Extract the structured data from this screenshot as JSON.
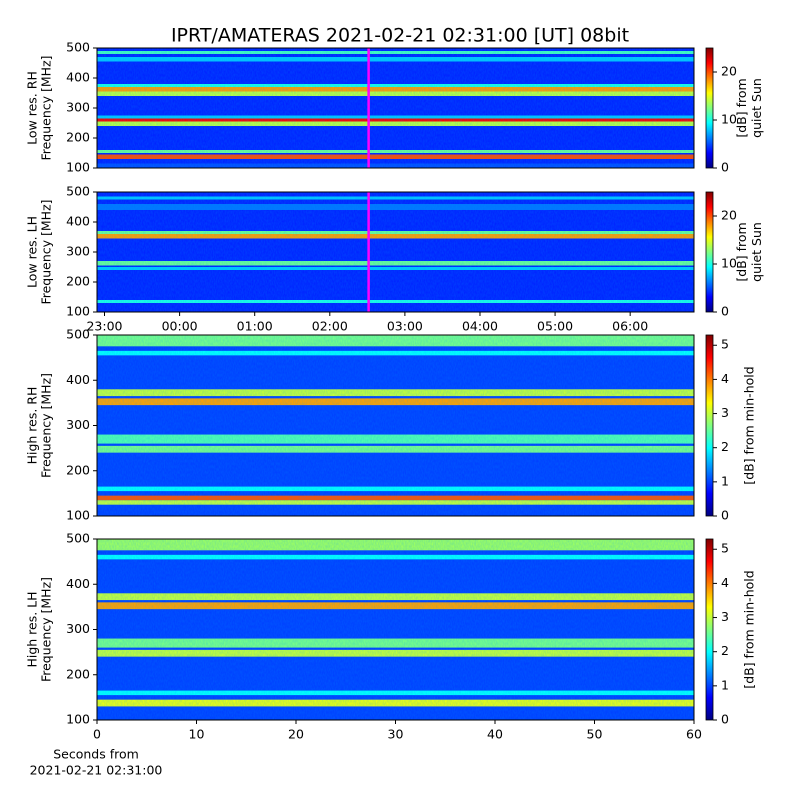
{
  "chart_data": [
    {
      "type": "heatmap",
      "title": "IPRT/AMATERAS 2021-02-21 02:31:00 [UT]   08bit",
      "ylabel": [
        "Low res. RH",
        "Frequency [MHz]"
      ],
      "ylim": [
        100,
        500
      ],
      "yticks": [
        100,
        200,
        300,
        400,
        500
      ],
      "xlim": [
        -1.1,
        6.85
      ],
      "marker_x": 2.517,
      "marker_color": "#ff00ff",
      "colorbar_label": [
        "[dB] from",
        "quiet Sun"
      ],
      "zlim": [
        0,
        25
      ],
      "zticks": [
        0,
        10,
        20
      ],
      "colormap": "jet",
      "background": 4,
      "bands": [
        {
          "range": [
            100,
            115
          ],
          "value": 5
        },
        {
          "range": [
            130,
            145
          ],
          "value": 20
        },
        {
          "range": [
            150,
            160
          ],
          "value": 12
        },
        {
          "range": [
            240,
            255
          ],
          "value": 14
        },
        {
          "range": [
            255,
            265
          ],
          "value": 22
        },
        {
          "range": [
            265,
            275
          ],
          "value": 8
        },
        {
          "range": [
            340,
            355
          ],
          "value": 14
        },
        {
          "range": [
            355,
            370
          ],
          "value": 18
        },
        {
          "range": [
            370,
            380
          ],
          "value": 10
        },
        {
          "range": [
            455,
            470
          ],
          "value": 8
        },
        {
          "range": [
            480,
            490
          ],
          "value": 11
        }
      ]
    },
    {
      "type": "heatmap",
      "ylabel": [
        "Low res. LH",
        "Frequency [MHz]"
      ],
      "ylim": [
        100,
        500
      ],
      "yticks": [
        100,
        200,
        300,
        400,
        500
      ],
      "xlim": [
        -1.1,
        6.85
      ],
      "xticks": [
        {
          "value": -1,
          "label": "23:00"
        },
        {
          "value": 0,
          "label": "00:00"
        },
        {
          "value": 1,
          "label": "01:00"
        },
        {
          "value": 2,
          "label": "02:00"
        },
        {
          "value": 3,
          "label": "03:00"
        },
        {
          "value": 4,
          "label": "04:00"
        },
        {
          "value": 5,
          "label": "05:00"
        },
        {
          "value": 6,
          "label": "06:00"
        }
      ],
      "marker_x": 2.517,
      "marker_color": "#ff00ff",
      "colorbar_label": [
        "[dB] from",
        "quiet Sun"
      ],
      "zlim": [
        0,
        25
      ],
      "zticks": [
        0,
        10,
        20
      ],
      "colormap": "jet",
      "background": 4,
      "bands": [
        {
          "range": [
            130,
            140
          ],
          "value": 10
        },
        {
          "range": [
            240,
            250
          ],
          "value": 8
        },
        {
          "range": [
            255,
            270
          ],
          "value": 12
        },
        {
          "range": [
            345,
            360
          ],
          "value": 18
        },
        {
          "range": [
            360,
            370
          ],
          "value": 12
        },
        {
          "range": [
            440,
            460
          ],
          "value": 6
        },
        {
          "range": [
            475,
            485
          ],
          "value": 8
        }
      ]
    },
    {
      "type": "heatmap",
      "ylabel": [
        "High res. RH",
        "Frequency [MHz]"
      ],
      "ylim": [
        100,
        500
      ],
      "yticks": [
        100,
        200,
        300,
        400,
        500
      ],
      "xlim": [
        0,
        60
      ],
      "colorbar_label": [
        "[dB] from min-hold"
      ],
      "zlim": [
        0,
        5.3
      ],
      "zticks": [
        0,
        1,
        2,
        3,
        4,
        5
      ],
      "colormap": "jet",
      "background": 1,
      "bands": [
        {
          "range": [
            125,
            135
          ],
          "value": 3
        },
        {
          "range": [
            135,
            145
          ],
          "value": 4.2
        },
        {
          "range": [
            155,
            165
          ],
          "value": 2
        },
        {
          "range": [
            240,
            255
          ],
          "value": 2.6
        },
        {
          "range": [
            260,
            280
          ],
          "value": 2.4
        },
        {
          "range": [
            345,
            360
          ],
          "value": 3.8
        },
        {
          "range": [
            365,
            380
          ],
          "value": 3
        },
        {
          "range": [
            455,
            465
          ],
          "value": 2
        },
        {
          "range": [
            475,
            500
          ],
          "value": 2.6
        }
      ]
    },
    {
      "type": "heatmap",
      "ylabel": [
        "High res. LH",
        "Frequency [MHz]"
      ],
      "ylim": [
        100,
        500
      ],
      "yticks": [
        100,
        200,
        300,
        400,
        500
      ],
      "xlim": [
        0,
        60
      ],
      "xticks": [
        0,
        10,
        20,
        30,
        40,
        50,
        60
      ],
      "xlabel": [
        "Seconds from",
        "2021-02-21 02:31:00"
      ],
      "colorbar_label": [
        "[dB] from min-hold"
      ],
      "zlim": [
        0,
        5.3
      ],
      "zticks": [
        0,
        1,
        2,
        3,
        4,
        5
      ],
      "colormap": "jet",
      "background": 1,
      "bands": [
        {
          "range": [
            130,
            145
          ],
          "value": 3.2
        },
        {
          "range": [
            155,
            165
          ],
          "value": 2
        },
        {
          "range": [
            240,
            255
          ],
          "value": 3
        },
        {
          "range": [
            260,
            280
          ],
          "value": 2.6
        },
        {
          "range": [
            345,
            360
          ],
          "value": 3.8
        },
        {
          "range": [
            365,
            380
          ],
          "value": 3
        },
        {
          "range": [
            455,
            465
          ],
          "value": 2
        },
        {
          "range": [
            475,
            500
          ],
          "value": 2.8
        }
      ]
    }
  ]
}
